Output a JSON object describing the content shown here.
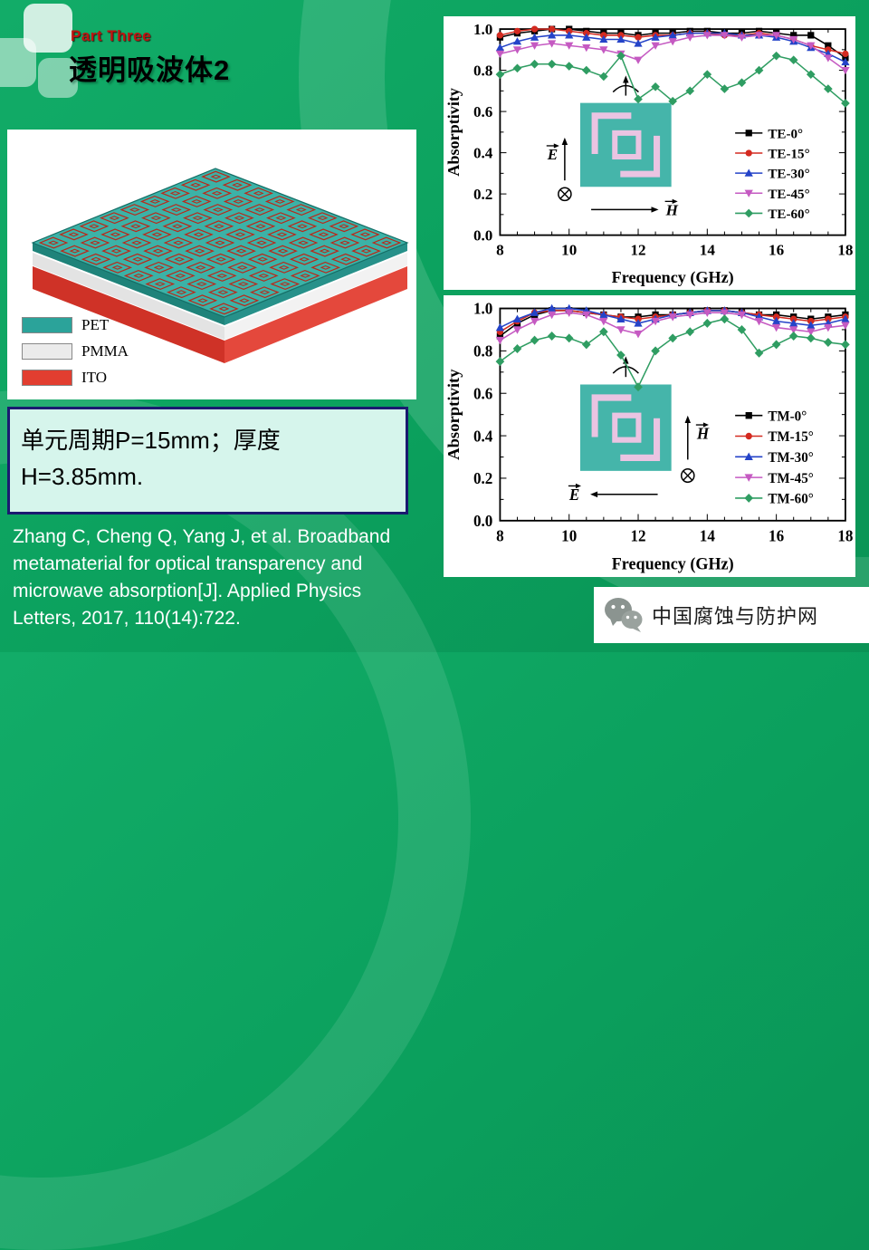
{
  "slide": {
    "part_label": "Part Three",
    "title": "透明吸波体2",
    "params": {
      "line1": "单元周期P=15mm；厚度",
      "line2": "H=3.85mm."
    },
    "citation_lines": [
      "Zhang C, Cheng Q, Yang J, et al. Broadband",
      "metamaterial for optical transparency and",
      "microwave absorption[J]. Applied Physics",
      "Letters, 2017, 110(14):722."
    ],
    "footer": {
      "brand": "中国腐蚀与防护网"
    }
  },
  "diagram": {
    "legend": [
      {
        "label": "PET",
        "color": "#2ba39a"
      },
      {
        "label": "PMMA",
        "color": "#ebebeb"
      },
      {
        "label": "ITO",
        "color": "#e23e30"
      }
    ],
    "pattern_color": "#bb2718",
    "top_color": "#3cb2a7"
  },
  "chart_data": [
    {
      "type": "line",
      "title": "",
      "xlabel": "Frequency (GHz)",
      "ylabel": "Absorptivity",
      "xlim": [
        8,
        18
      ],
      "ylim": [
        0.0,
        1.0
      ],
      "xticks": [
        8,
        10,
        12,
        14,
        16,
        18
      ],
      "yticks": [
        0.0,
        0.2,
        0.4,
        0.6,
        0.8,
        1.0
      ],
      "grid": false,
      "legend_position": "right-inside",
      "x": [
        8,
        8.5,
        9,
        9.5,
        10,
        10.5,
        11,
        11.5,
        12,
        12.5,
        13,
        13.5,
        14,
        14.5,
        15,
        15.5,
        16,
        16.5,
        17,
        17.5,
        18
      ],
      "series": [
        {
          "name": "TE-0°",
          "color": "#000000",
          "marker": "square",
          "values": [
            0.96,
            0.98,
            0.99,
            1.0,
            1.0,
            0.99,
            0.98,
            0.98,
            0.97,
            0.98,
            0.98,
            0.99,
            0.99,
            0.98,
            0.98,
            0.99,
            0.98,
            0.97,
            0.97,
            0.92,
            0.86
          ]
        },
        {
          "name": "TE-15°",
          "color": "#d42a20",
          "marker": "circle",
          "values": [
            0.97,
            0.99,
            1.0,
            1.0,
            0.99,
            0.98,
            0.97,
            0.97,
            0.96,
            0.97,
            0.97,
            0.98,
            0.98,
            0.97,
            0.97,
            0.98,
            0.97,
            0.95,
            0.92,
            0.9,
            0.88
          ]
        },
        {
          "name": "TE-30°",
          "color": "#2443c8",
          "marker": "triangle-up",
          "values": [
            0.91,
            0.94,
            0.96,
            0.97,
            0.97,
            0.96,
            0.95,
            0.95,
            0.93,
            0.96,
            0.97,
            0.98,
            0.98,
            0.98,
            0.97,
            0.97,
            0.96,
            0.94,
            0.91,
            0.88,
            0.84
          ]
        },
        {
          "name": "TE-45°",
          "color": "#c55ac2",
          "marker": "triangle-down",
          "values": [
            0.88,
            0.9,
            0.92,
            0.93,
            0.92,
            0.91,
            0.9,
            0.88,
            0.85,
            0.92,
            0.94,
            0.96,
            0.97,
            0.97,
            0.96,
            0.97,
            0.97,
            0.95,
            0.92,
            0.86,
            0.8
          ]
        },
        {
          "name": "TE-60°",
          "color": "#2f9d62",
          "marker": "diamond",
          "values": [
            0.78,
            0.81,
            0.83,
            0.83,
            0.82,
            0.8,
            0.77,
            0.87,
            0.66,
            0.72,
            0.65,
            0.7,
            0.78,
            0.71,
            0.74,
            0.8,
            0.87,
            0.85,
            0.78,
            0.71,
            0.64
          ]
        }
      ],
      "inset": {
        "variant": "TE",
        "panel_color": "#45b5aa",
        "pattern_color": "#eac4e2",
        "e_label": "E",
        "h_label": "H"
      }
    },
    {
      "type": "line",
      "title": "",
      "xlabel": "Frequency (GHz)",
      "ylabel": "Absorptivity",
      "xlim": [
        8,
        18
      ],
      "ylim": [
        0.0,
        1.0
      ],
      "xticks": [
        8,
        10,
        12,
        14,
        16,
        18
      ],
      "yticks": [
        0.0,
        0.2,
        0.4,
        0.6,
        0.8,
        1.0
      ],
      "grid": false,
      "legend_position": "right-inside",
      "x": [
        8,
        8.5,
        9,
        9.5,
        10,
        10.5,
        11,
        11.5,
        12,
        12.5,
        13,
        13.5,
        14,
        14.5,
        15,
        15.5,
        16,
        16.5,
        17,
        17.5,
        18
      ],
      "series": [
        {
          "name": "TM-0°",
          "color": "#000000",
          "marker": "square",
          "values": [
            0.87,
            0.93,
            0.97,
            0.99,
            0.99,
            0.98,
            0.97,
            0.96,
            0.96,
            0.97,
            0.97,
            0.98,
            0.99,
            0.99,
            0.98,
            0.97,
            0.97,
            0.96,
            0.95,
            0.96,
            0.97
          ]
        },
        {
          "name": "TM-15°",
          "color": "#d42a20",
          "marker": "circle",
          "values": [
            0.89,
            0.94,
            0.98,
            0.99,
            0.99,
            0.98,
            0.97,
            0.96,
            0.95,
            0.96,
            0.97,
            0.98,
            0.99,
            0.99,
            0.98,
            0.97,
            0.96,
            0.95,
            0.94,
            0.95,
            0.96
          ]
        },
        {
          "name": "TM-30°",
          "color": "#2443c8",
          "marker": "triangle-up",
          "values": [
            0.91,
            0.95,
            0.98,
            1.0,
            1.0,
            0.99,
            0.97,
            0.95,
            0.93,
            0.95,
            0.97,
            0.98,
            0.99,
            0.99,
            0.98,
            0.96,
            0.94,
            0.93,
            0.92,
            0.93,
            0.95
          ]
        },
        {
          "name": "TM-45°",
          "color": "#c55ac2",
          "marker": "triangle-down",
          "values": [
            0.85,
            0.9,
            0.94,
            0.97,
            0.98,
            0.97,
            0.94,
            0.9,
            0.88,
            0.94,
            0.96,
            0.97,
            0.98,
            0.98,
            0.97,
            0.94,
            0.91,
            0.9,
            0.89,
            0.91,
            0.92
          ]
        },
        {
          "name": "TM-60°",
          "color": "#2f9d62",
          "marker": "diamond",
          "values": [
            0.75,
            0.81,
            0.85,
            0.87,
            0.86,
            0.83,
            0.89,
            0.78,
            0.63,
            0.8,
            0.86,
            0.89,
            0.93,
            0.95,
            0.9,
            0.79,
            0.83,
            0.87,
            0.86,
            0.84,
            0.83
          ]
        }
      ],
      "inset": {
        "variant": "TM",
        "panel_color": "#45b5aa",
        "pattern_color": "#eac4e2",
        "e_label": "E",
        "h_label": "H"
      }
    }
  ]
}
